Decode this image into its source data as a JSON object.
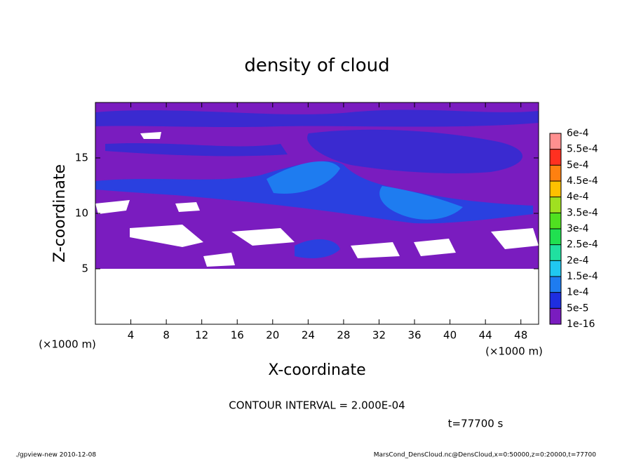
{
  "chart_data": {
    "type": "contour",
    "title": "density of cloud",
    "x_label": "X-coordinate",
    "y_label": "Z-coordinate",
    "x_unit": "(×1000 m)",
    "y_unit": "(×1000 m)",
    "xlim": [
      0,
      50
    ],
    "xticks": [
      4,
      8,
      12,
      16,
      20,
      24,
      28,
      32,
      36,
      40,
      44,
      48
    ],
    "ylim": [
      0,
      20
    ],
    "yticks": [
      5,
      10,
      15
    ],
    "levels": [
      {
        "value": 1e-16,
        "label": "1e-16"
      },
      {
        "value": 5e-05,
        "label": "5e-5"
      },
      {
        "value": 0.0001,
        "label": "1e-4"
      },
      {
        "value": 0.00015,
        "label": "1.5e-4"
      },
      {
        "value": 0.0002,
        "label": "2e-4"
      },
      {
        "value": 0.00025,
        "label": "2.5e-4"
      },
      {
        "value": 0.0003,
        "label": "3e-4"
      },
      {
        "value": 0.00035,
        "label": "3.5e-4"
      },
      {
        "value": 0.0004,
        "label": "4e-4"
      },
      {
        "value": 0.00045,
        "label": "4.5e-4"
      },
      {
        "value": 0.0005,
        "label": "5e-4"
      },
      {
        "value": 0.00055,
        "label": "5.5e-4"
      },
      {
        "value": 0.0006,
        "label": "6e-4"
      }
    ],
    "level_colors": [
      "#7a1cbf",
      "#1e2ee0",
      "#1e7cf0",
      "#20c8f0",
      "#20e0a0",
      "#20e050",
      "#50e020",
      "#a0e020",
      "#ffc000",
      "#ff8010",
      "#ff3020",
      "#ff9090"
    ],
    "contour_interval": "CONTOUR INTERVAL = 2.000E-04",
    "time_label": "t=77700 s",
    "footer_left": "./gpview-new  2010-12-08",
    "footer_right": "MarsCond_DensCloud.nc@DensCloud,x=0:50000,z=0:20000,t=77700"
  }
}
